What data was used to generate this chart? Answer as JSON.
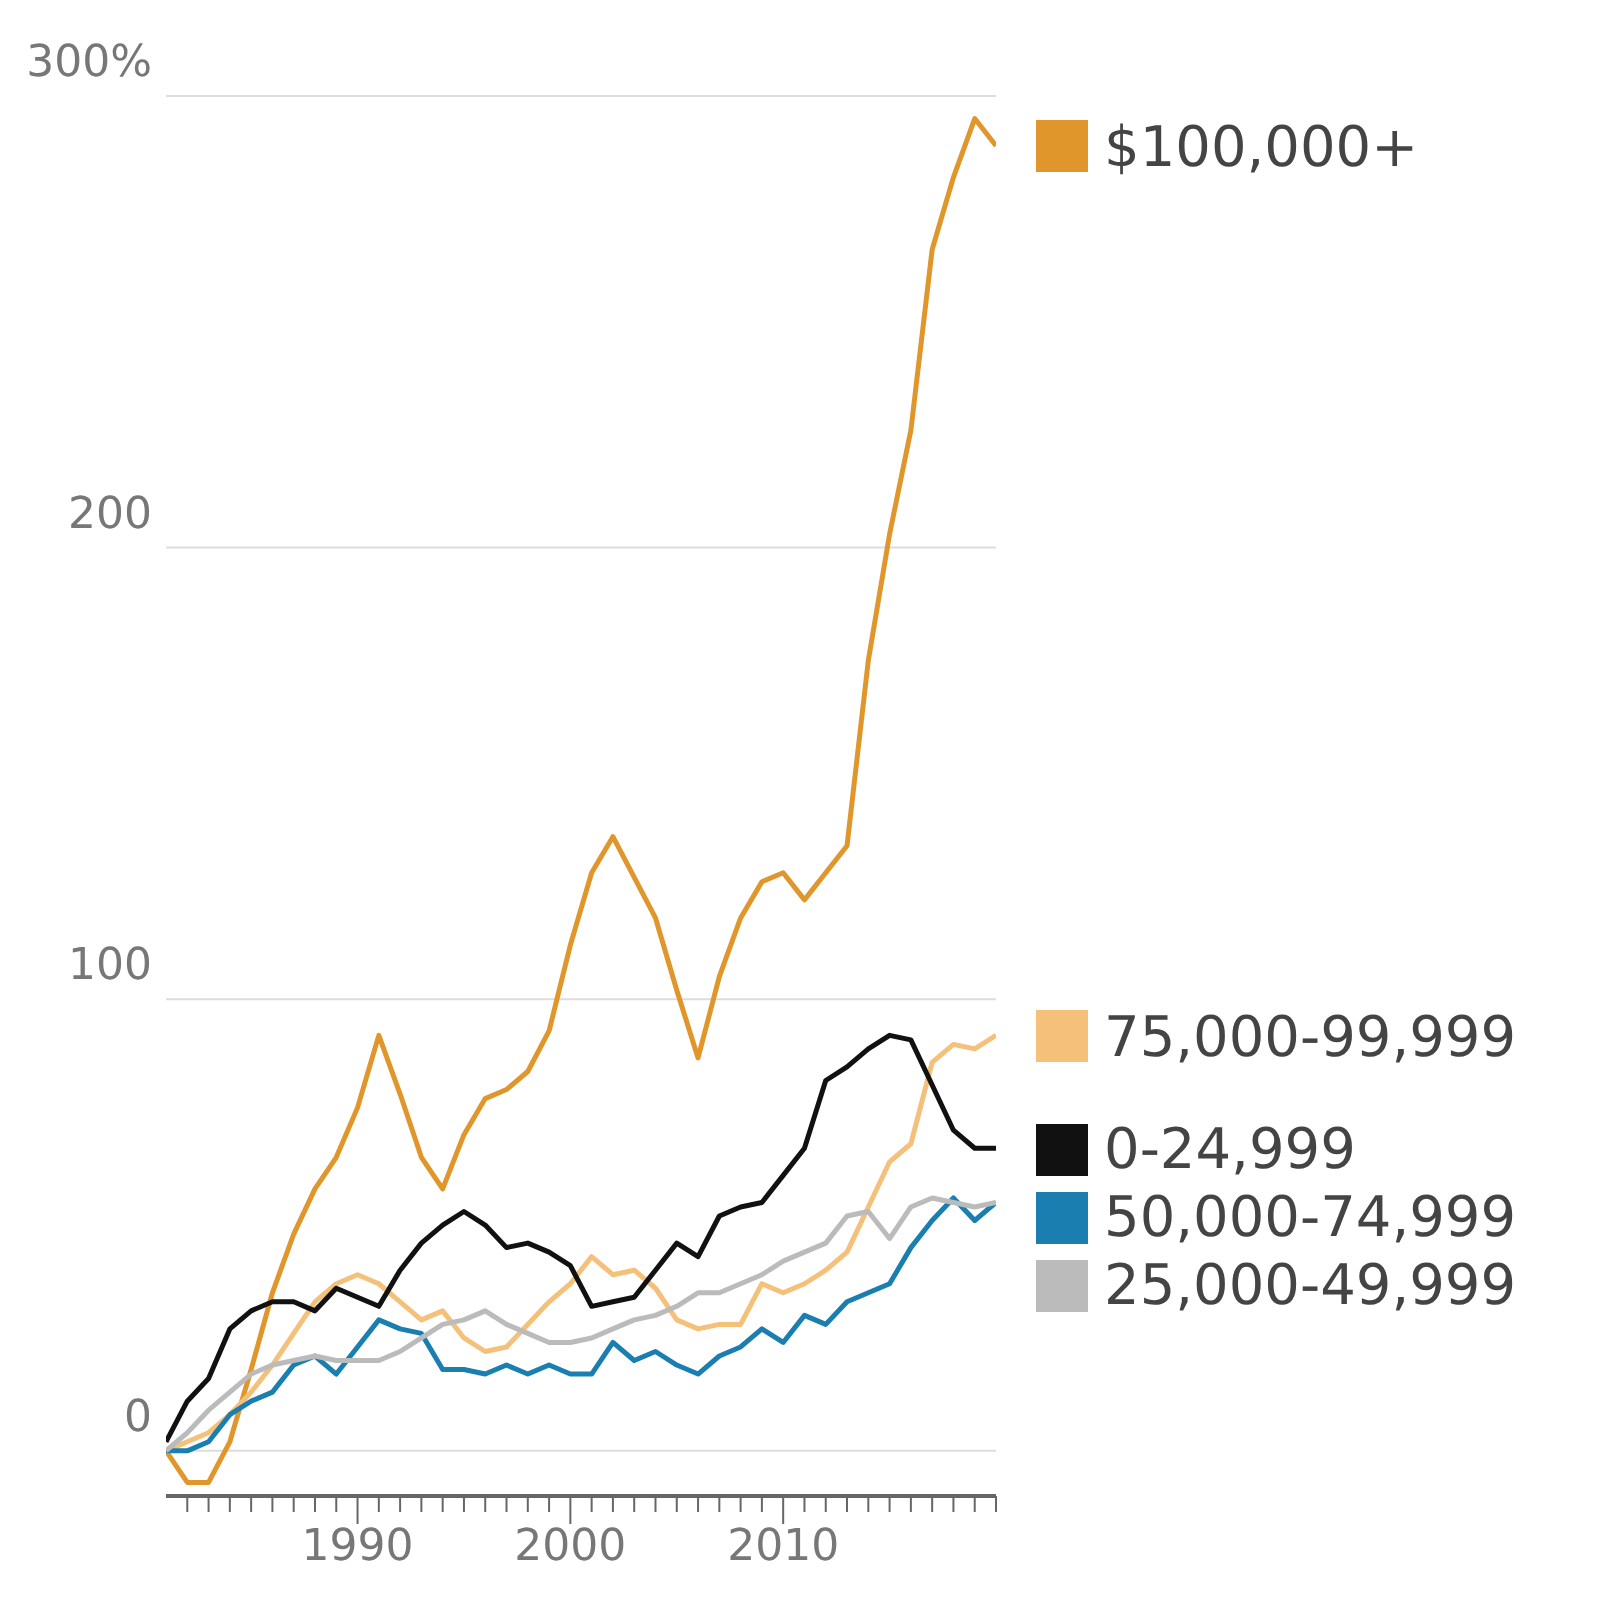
{
  "chart_data": {
    "type": "line",
    "x": [
      1981,
      1982,
      1983,
      1984,
      1985,
      1986,
      1987,
      1988,
      1989,
      1990,
      1991,
      1992,
      1993,
      1994,
      1995,
      1996,
      1997,
      1998,
      1999,
      2000,
      2001,
      2002,
      2003,
      2004,
      2005,
      2006,
      2007,
      2008,
      2009,
      2010,
      2011,
      2012,
      2013,
      2014,
      2015,
      2016,
      2017,
      2018,
      2019,
      2020
    ],
    "series": [
      {
        "name": "$100,000+",
        "color": "#e0962a",
        "values": [
          0,
          -7,
          -7,
          2,
          18,
          35,
          48,
          58,
          65,
          76,
          92,
          79,
          65,
          58,
          70,
          78,
          80,
          84,
          93,
          112,
          128,
          136,
          127,
          118,
          102,
          87,
          105,
          118,
          126,
          128,
          122,
          128,
          134,
          175,
          203,
          226,
          266,
          282,
          295,
          289
        ]
      },
      {
        "name": "75,000-99,999",
        "color": "#f5c07a",
        "values": [
          0,
          2,
          4,
          8,
          13,
          19,
          26,
          33,
          37,
          39,
          37,
          33,
          29,
          31,
          25,
          22,
          23,
          28,
          33,
          37,
          43,
          39,
          40,
          36,
          29,
          27,
          28,
          28,
          37,
          35,
          37,
          40,
          44,
          54,
          64,
          68,
          86,
          90,
          89,
          92
        ]
      },
      {
        "name": "0-24,999",
        "color": "#111111",
        "values": [
          2,
          11,
          16,
          27,
          31,
          33,
          33,
          31,
          36,
          34,
          32,
          40,
          46,
          50,
          53,
          50,
          45,
          46,
          44,
          41,
          32,
          33,
          34,
          40,
          46,
          43,
          52,
          54,
          55,
          61,
          67,
          82,
          85,
          89,
          92,
          91,
          81,
          71,
          67,
          67
        ]
      },
      {
        "name": "50,000-74,999",
        "color": "#1a7fb0",
        "values": [
          0,
          0,
          2,
          8,
          11,
          13,
          19,
          21,
          17,
          23,
          29,
          27,
          26,
          18,
          18,
          17,
          19,
          17,
          19,
          17,
          17,
          24,
          20,
          22,
          19,
          17,
          21,
          23,
          27,
          24,
          30,
          28,
          33,
          35,
          37,
          45,
          51,
          56,
          51,
          55
        ]
      },
      {
        "name": "25,000-49,999",
        "color": "#bbbbbb",
        "values": [
          0,
          4,
          9,
          13,
          17,
          19,
          20,
          21,
          20,
          20,
          20,
          22,
          25,
          28,
          29,
          31,
          28,
          26,
          24,
          24,
          25,
          27,
          29,
          30,
          32,
          35,
          35,
          37,
          39,
          42,
          44,
          46,
          52,
          53,
          47,
          54,
          56,
          55,
          54,
          55
        ]
      }
    ],
    "xlim": [
      1981,
      2020
    ],
    "xticks": [
      {
        "value": 1982,
        "label": null
      },
      {
        "value": 1983,
        "label": null
      },
      {
        "value": 1984,
        "label": null
      },
      {
        "value": 1985,
        "label": null
      },
      {
        "value": 1986,
        "label": null
      },
      {
        "value": 1987,
        "label": null
      },
      {
        "value": 1988,
        "label": null
      },
      {
        "value": 1989,
        "label": null
      },
      1990,
      {
        "value": 1991,
        "label": null
      },
      {
        "value": 1992,
        "label": null
      },
      {
        "value": 1993,
        "label": null
      },
      {
        "value": 1994,
        "label": null
      },
      {
        "value": 1995,
        "label": null
      },
      {
        "value": 1996,
        "label": null
      },
      {
        "value": 1997,
        "label": null
      },
      {
        "value": 1998,
        "label": null
      },
      {
        "value": 1999,
        "label": null
      },
      2000,
      {
        "value": 2001,
        "label": null
      },
      {
        "value": 2002,
        "label": null
      },
      {
        "value": 2003,
        "label": null
      },
      {
        "value": 2004,
        "label": null
      },
      {
        "value": 2005,
        "label": null
      },
      {
        "value": 2006,
        "label": null
      },
      {
        "value": 2007,
        "label": null
      },
      {
        "value": 2008,
        "label": null
      },
      {
        "value": 2009,
        "label": null
      },
      2010,
      {
        "value": 2011,
        "label": null
      },
      {
        "value": 2012,
        "label": null
      },
      {
        "value": 2013,
        "label": null
      },
      {
        "value": 2014,
        "label": null
      },
      {
        "value": 2015,
        "label": null
      },
      {
        "value": 2016,
        "label": null
      },
      {
        "value": 2017,
        "label": null
      },
      {
        "value": 2018,
        "label": null
      },
      {
        "value": 2019,
        "label": null
      },
      {
        "value": 2020,
        "label": null
      }
    ],
    "ylim": [
      -10,
      300
    ],
    "yticks": [
      0,
      100,
      200,
      {
        "value": 300,
        "label": "300%"
      }
    ],
    "grid": "y",
    "legend": "right"
  }
}
